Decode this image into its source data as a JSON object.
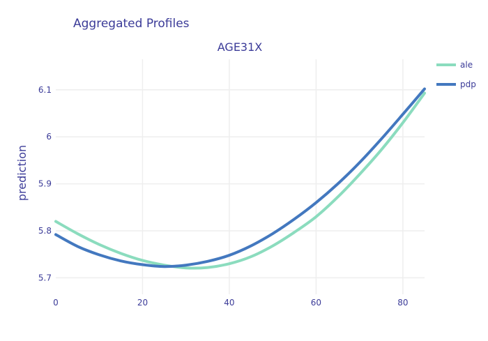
{
  "title": "Aggregated Profiles",
  "colors": {
    "text": "#3b3b98",
    "grid": "#eeeeee",
    "ale": "#8bdcbe",
    "pdp": "#4378bf"
  },
  "chart_data": {
    "type": "line",
    "title": "Aggregated Profiles",
    "subtitle": "AGE31X",
    "xlabel": "",
    "ylabel": "prediction",
    "xlim": [
      0,
      85
    ],
    "ylim": [
      5.665,
      6.165
    ],
    "xticks": [
      0,
      20,
      40,
      60,
      80
    ],
    "yticks": [
      5.7,
      5.8,
      5.9,
      6.0,
      6.1
    ],
    "ytick_labels": [
      "5.7",
      "5.8",
      "5.9",
      "6",
      "6.1"
    ],
    "grid": true,
    "legend_position": "top-right",
    "series": [
      {
        "name": "ale",
        "color": "#8bdcbe",
        "x": [
          0,
          5,
          10,
          15,
          20,
          25,
          30,
          35,
          40,
          45,
          50,
          55,
          60,
          65,
          70,
          75,
          80,
          85
        ],
        "y": [
          5.82,
          5.794,
          5.771,
          5.752,
          5.737,
          5.727,
          5.721,
          5.722,
          5.73,
          5.745,
          5.768,
          5.797,
          5.83,
          5.872,
          5.92,
          5.972,
          6.03,
          6.093
        ]
      },
      {
        "name": "pdp",
        "color": "#4378bf",
        "x": [
          0,
          5,
          10,
          15,
          20,
          25,
          30,
          35,
          40,
          45,
          50,
          55,
          60,
          65,
          70,
          75,
          80,
          85
        ],
        "y": [
          5.792,
          5.767,
          5.749,
          5.736,
          5.728,
          5.724,
          5.727,
          5.735,
          5.748,
          5.768,
          5.794,
          5.825,
          5.86,
          5.9,
          5.945,
          5.995,
          6.048,
          6.102
        ]
      }
    ]
  }
}
